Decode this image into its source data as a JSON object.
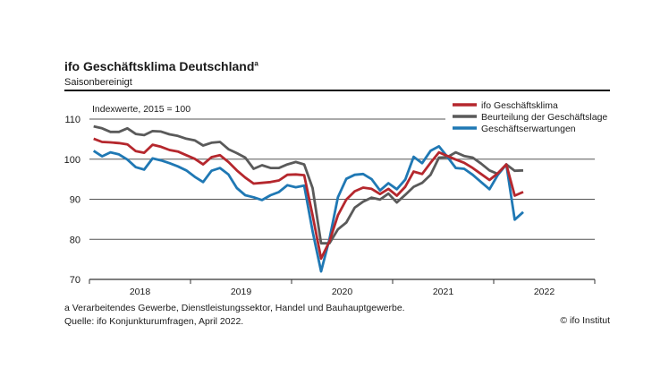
{
  "chart_data": {
    "type": "line",
    "title": "ifo Geschäftsklima Deutschland",
    "title_footnote_marker": "a",
    "subtitle": "Saisonbereinigt",
    "ylabel": "Indexwerte, 2015 = 100",
    "ylim": [
      70,
      110
    ],
    "yticks": [
      "70",
      "80",
      "90",
      "100",
      "110"
    ],
    "xlabels": [
      "2018",
      "2019",
      "2020",
      "2021",
      "2022"
    ],
    "x_start": "2018-01",
    "x_end": "2022-04",
    "frequency": "monthly",
    "grid": true,
    "legend_position": "top-right",
    "series": [
      {
        "name": "ifo Geschäftsklima",
        "color": "#b5272d",
        "values": [
          105.1,
          104.3,
          104.2,
          104.0,
          103.7,
          102.0,
          101.6,
          103.6,
          103.1,
          102.3,
          101.9,
          101.0,
          100.1,
          98.7,
          100.5,
          101.0,
          99.3,
          97.2,
          95.4,
          93.9,
          94.1,
          94.3,
          94.7,
          96.1,
          96.2,
          96.0,
          86.0,
          75.2,
          79.5,
          86.0,
          89.9,
          92.0,
          92.9,
          92.6,
          91.3,
          92.6,
          90.9,
          93.1,
          96.9,
          96.3,
          99.1,
          101.7,
          100.8,
          99.9,
          99.1,
          97.8,
          96.3,
          94.8,
          96.5,
          98.7,
          90.9,
          91.8
        ]
      },
      {
        "name": "Beurteilung der Geschäftslage",
        "color": "#5a5a5a",
        "values": [
          108.2,
          107.7,
          106.8,
          106.8,
          107.7,
          106.3,
          106.0,
          107.0,
          106.9,
          106.2,
          105.8,
          105.1,
          104.7,
          103.4,
          104.1,
          104.3,
          102.5,
          101.5,
          100.4,
          97.6,
          98.5,
          97.8,
          97.8,
          98.7,
          99.3,
          98.7,
          92.8,
          79.0,
          79.0,
          82.5,
          84.2,
          87.9,
          89.4,
          90.4,
          89.9,
          91.4,
          89.2,
          91.1,
          93.1,
          94.1,
          96.1,
          100.4,
          100.5,
          101.7,
          100.8,
          100.4,
          98.9,
          97.2,
          96.3,
          98.7,
          97.1,
          97.2
        ]
      },
      {
        "name": "Geschäftserwartungen",
        "color": "#1f78b4",
        "values": [
          102.1,
          100.7,
          101.7,
          101.2,
          99.9,
          98.0,
          97.4,
          100.2,
          99.7,
          99.0,
          98.2,
          97.2,
          95.6,
          94.3,
          97.1,
          97.8,
          96.2,
          92.8,
          91.0,
          90.5,
          89.8,
          91.0,
          91.8,
          93.5,
          93.0,
          93.4,
          82.0,
          72.0,
          80.1,
          90.5,
          95.1,
          96.1,
          96.3,
          95.0,
          92.2,
          94.0,
          92.5,
          94.9,
          100.6,
          99.0,
          102.1,
          103.2,
          100.6,
          97.8,
          97.6,
          96.1,
          94.3,
          92.5,
          96.1,
          98.7,
          84.9,
          86.8
        ]
      }
    ]
  },
  "footnotes": {
    "note_a": "a Verarbeitendes Gewerbe, Dienstleistungssektor, Handel und Bauhauptgewerbe.",
    "source": "Quelle: ifo Konjunkturumfragen, April 2022.",
    "copyright": "© ifo Institut"
  }
}
